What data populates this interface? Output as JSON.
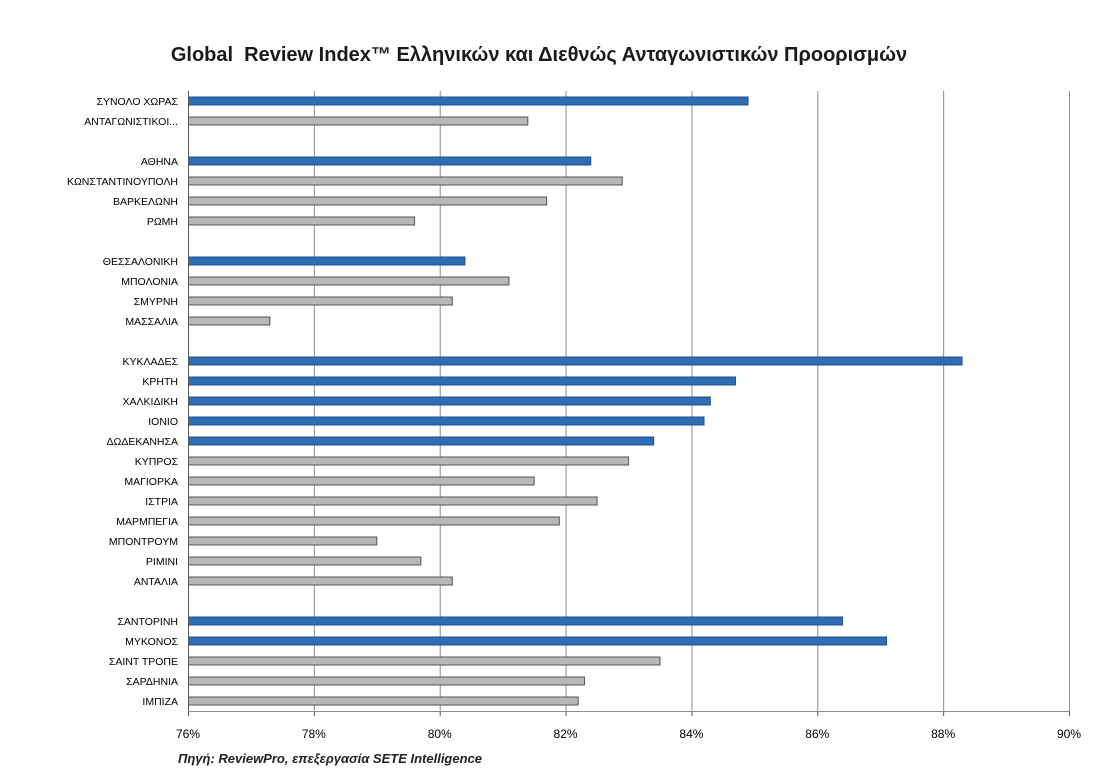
{
  "chart_data": {
    "type": "bar",
    "orientation": "horizontal",
    "title": "Global  Review Index™ Ελληνικών και Διεθνώς Ανταγωνιστικών Προορισμών",
    "source": "Πηγή: ReviewPro, επεξεργασία SETE Intelligence",
    "xlabel": "",
    "ylabel": "",
    "xlim": [
      76,
      90
    ],
    "x_ticks": [
      76,
      78,
      80,
      82,
      84,
      86,
      88,
      90
    ],
    "x_tick_labels": [
      "76%",
      "78%",
      "80%",
      "82%",
      "84%",
      "86%",
      "88%",
      "90%"
    ],
    "grid": "vertical",
    "legend": "none",
    "categories": [
      "ΣΥΝΟΛΟ ΧΩΡΑΣ",
      "ΑΝΤΑΓΩΝΙΣΤΙΚΟΙ...",
      "",
      "ΑΘΗΝΑ",
      "ΚΩΝΣΤΑΝΤΙΝΟΥΠΟΛΗ",
      "ΒΑΡΚΕΛΩΝΗ",
      "ΡΩΜΗ",
      "",
      "ΘΕΣΣΑΛΟΝΙΚΗ",
      "ΜΠΟΛΟΝΙΑ",
      "ΣΜΥΡΝΗ",
      "ΜΑΣΣΑΛΙΑ",
      "",
      "ΚΥΚΛΑΔΕΣ",
      "ΚΡΗΤΗ",
      "ΧΑΛΚΙΔΙΚΗ",
      "ΙΟΝΙΟ",
      "ΔΩΔΕΚΑΝΗΣΑ",
      "ΚΥΠΡΟΣ",
      "ΜΑΓΙΟΡΚΑ",
      "ΙΣΤΡΙΑ",
      "ΜΑΡΜΠΕΓΙΑ",
      "ΜΠΟΝΤΡΟΥΜ",
      "ΡΙΜΙΝΙ",
      "ΑΝΤΑΛΙΑ",
      "",
      "ΣΑΝΤΟΡΙΝΗ",
      "ΜΥΚΟΝΟΣ",
      "ΣΑΙΝΤ ΤΡΟΠΕ",
      "ΣΑΡΔΗΝΙΑ",
      "ΙΜΠΙΖΑ"
    ],
    "values": [
      84.9,
      81.4,
      null,
      82.4,
      82.9,
      81.7,
      79.6,
      null,
      80.4,
      81.1,
      80.2,
      77.3,
      null,
      88.3,
      84.7,
      84.3,
      84.2,
      83.4,
      83.0,
      81.5,
      82.5,
      81.9,
      79.0,
      79.7,
      80.2,
      null,
      86.4,
      87.1,
      83.5,
      82.3,
      82.2
    ],
    "highlighted": [
      true,
      false,
      false,
      true,
      false,
      false,
      false,
      false,
      true,
      false,
      false,
      false,
      false,
      true,
      true,
      true,
      true,
      true,
      false,
      false,
      false,
      false,
      false,
      false,
      false,
      false,
      true,
      true,
      false,
      false,
      false
    ],
    "colors": {
      "highlight_fill": "#2e6db4",
      "highlight_stroke": "#1f4f8f",
      "other_fill": "#b8b8b8",
      "other_stroke": "#555555",
      "grid": "#8c8c8c",
      "axis": "#595959"
    }
  }
}
